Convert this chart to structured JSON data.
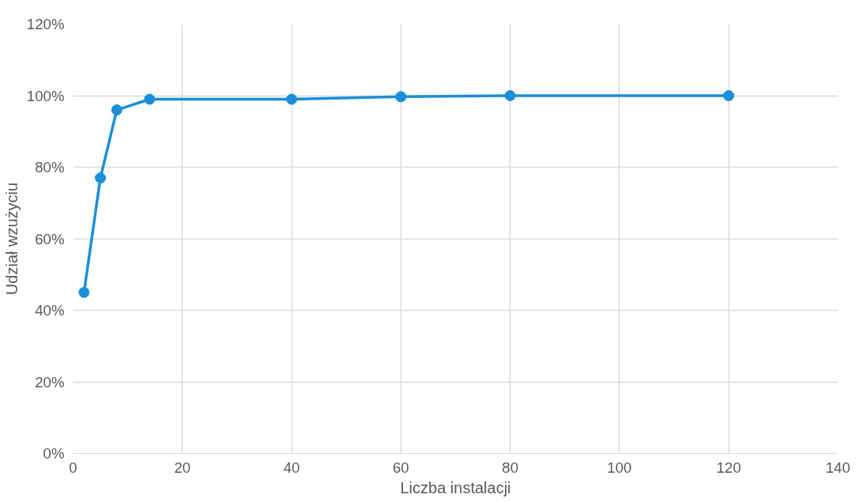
{
  "chart_data": {
    "type": "line",
    "xlabel": "Liczba instalacji",
    "ylabel": "Udział wzużyciu",
    "x": [
      2,
      5,
      8,
      14,
      40,
      60,
      80,
      120
    ],
    "series": [
      {
        "color": "#1a8fd8",
        "values": [
          0.45,
          0.77,
          0.96,
          0.99,
          0.99,
          0.997,
          1.0,
          1.0
        ]
      }
    ],
    "xlim": [
      0,
      140
    ],
    "xticks": [
      0,
      20,
      40,
      60,
      80,
      100,
      120,
      140
    ],
    "ylim": [
      0,
      1.2
    ],
    "yticks": [
      {
        "value": 0,
        "label": "0%"
      },
      {
        "value": 0.2,
        "label": "20%"
      },
      {
        "value": 0.4,
        "label": "40%"
      },
      {
        "value": 0.6,
        "label": "60%"
      },
      {
        "value": 0.8,
        "label": "80%"
      },
      {
        "value": 1.0,
        "label": "100%"
      },
      {
        "value": 1.2,
        "label": "120%"
      }
    ],
    "grid": true,
    "marker": "circle"
  }
}
